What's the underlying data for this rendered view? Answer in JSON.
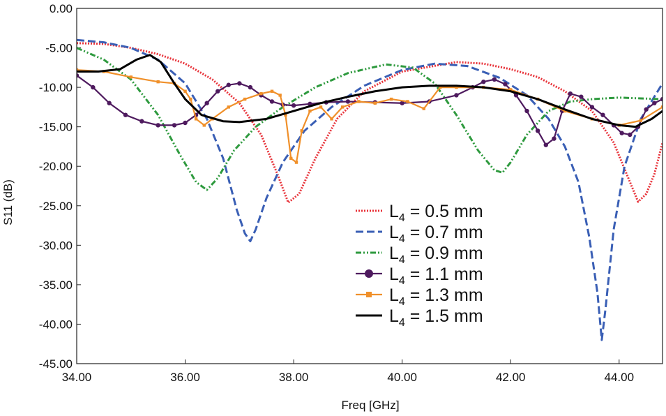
{
  "chart_data": {
    "type": "line",
    "title": "",
    "xlabel": "Freq [GHz]",
    "ylabel": "S11 (dB)",
    "xlim": [
      34.0,
      44.8
    ],
    "ylim": [
      -45.0,
      0.0
    ],
    "xticks": [
      "34.00",
      "36.00",
      "38.00",
      "40.00",
      "42.00",
      "44.00"
    ],
    "xtick_values": [
      34,
      36,
      38,
      40,
      42,
      44
    ],
    "yticks": [
      "0.00",
      "-5.00",
      "-10.00",
      "-15.00",
      "-20.00",
      "-25.00",
      "-30.00",
      "-35.00",
      "-40.00",
      "-45.00"
    ],
    "ytick_values": [
      0,
      -5,
      -10,
      -15,
      -20,
      -25,
      -30,
      -35,
      -40,
      -45
    ],
    "grid": false,
    "legend_position": "center-right",
    "series": [
      {
        "name": "0.5 mm",
        "label_prefix": "L",
        "label_sub": "4",
        "label_suffix": " = 0.5 mm",
        "color": "#e8333a",
        "dash": "2,2",
        "marker": "none",
        "x": [
          34.0,
          34.5,
          35.0,
          35.5,
          36.0,
          36.5,
          37.0,
          37.4,
          37.7,
          37.9,
          38.1,
          38.4,
          38.8,
          39.3,
          40.0,
          41.0,
          41.5,
          42.0,
          42.5,
          43.0,
          43.5,
          43.9,
          44.2,
          44.35,
          44.5,
          44.65,
          44.8
        ],
        "y": [
          -4.4,
          -4.5,
          -5.0,
          -5.8,
          -7.0,
          -9.0,
          -12.0,
          -16.0,
          -21.0,
          -24.6,
          -23.5,
          -19.0,
          -14.0,
          -10.5,
          -8.0,
          -6.8,
          -7.0,
          -7.7,
          -8.7,
          -10.5,
          -13.0,
          -17.0,
          -22.0,
          -24.5,
          -23.5,
          -21.0,
          -17.0
        ]
      },
      {
        "name": "0.7 mm",
        "label_prefix": "L",
        "label_sub": "4",
        "label_suffix": " = 0.7 mm",
        "color": "#3a5fb5",
        "dash": "11,5",
        "marker": "none",
        "x": [
          34.0,
          34.5,
          35.0,
          35.5,
          36.0,
          36.4,
          36.7,
          36.95,
          37.1,
          37.2,
          37.3,
          37.5,
          37.8,
          38.2,
          38.7,
          39.3,
          40.0,
          40.6,
          41.2,
          41.8,
          42.3,
          42.7,
          43.0,
          43.25,
          43.45,
          43.6,
          43.68,
          43.75,
          43.9,
          44.1,
          44.4,
          44.8
        ],
        "y": [
          -4.0,
          -4.3,
          -5.0,
          -6.5,
          -9.5,
          -14.0,
          -19.0,
          -25.5,
          -28.5,
          -29.5,
          -28.0,
          -24.0,
          -19.5,
          -15.5,
          -12.5,
          -9.8,
          -7.8,
          -7.0,
          -7.3,
          -8.8,
          -11.0,
          -14.0,
          -17.5,
          -22.0,
          -29.0,
          -36.0,
          -42.0,
          -38.0,
          -28.0,
          -20.0,
          -14.0,
          -9.5
        ]
      },
      {
        "name": "0.9 mm",
        "label_prefix": "L",
        "label_sub": "4",
        "label_suffix": " = 0.9 mm",
        "color": "#2e9a3e",
        "dash": "8,3,2,3,2,3",
        "marker": "none",
        "x": [
          34.0,
          34.5,
          35.0,
          35.5,
          35.9,
          36.2,
          36.4,
          36.6,
          36.9,
          37.3,
          37.8,
          38.4,
          39.0,
          39.7,
          40.2,
          40.6,
          41.0,
          41.4,
          41.7,
          41.85,
          42.0,
          42.3,
          42.7,
          43.1,
          43.5,
          44.0,
          44.4,
          44.8
        ],
        "y": [
          -5.0,
          -6.5,
          -9.0,
          -13.5,
          -18.5,
          -22.0,
          -23.0,
          -21.5,
          -18.0,
          -15.0,
          -12.5,
          -10.0,
          -8.2,
          -7.1,
          -7.5,
          -9.5,
          -13.5,
          -18.0,
          -20.5,
          -20.8,
          -19.5,
          -16.0,
          -13.0,
          -11.8,
          -11.5,
          -11.3,
          -11.4,
          -11.5
        ]
      },
      {
        "name": "1.1 mm",
        "label_prefix": "L",
        "label_sub": "4",
        "label_suffix": " = 1.1 mm",
        "color": "#4e1a5e",
        "dash": "",
        "marker": "circle",
        "x": [
          34.0,
          34.3,
          34.6,
          34.9,
          35.2,
          35.5,
          35.8,
          36.0,
          36.2,
          36.4,
          36.6,
          36.8,
          37.0,
          37.2,
          37.4,
          37.6,
          37.8,
          38.0,
          38.3,
          38.6,
          39.0,
          39.5,
          40.0,
          40.5,
          41.0,
          41.3,
          41.5,
          41.7,
          41.9,
          42.1,
          42.3,
          42.5,
          42.65,
          42.8,
          42.95,
          43.1,
          43.3,
          43.5,
          43.7,
          43.9,
          44.05,
          44.2,
          44.35,
          44.5,
          44.65,
          44.8
        ],
        "y": [
          -8.5,
          -10.0,
          -12.0,
          -13.5,
          -14.3,
          -14.8,
          -14.8,
          -14.5,
          -13.5,
          -12.0,
          -10.5,
          -9.7,
          -9.5,
          -10.0,
          -11.0,
          -11.8,
          -12.2,
          -12.3,
          -12.1,
          -11.9,
          -11.8,
          -11.9,
          -12.0,
          -11.8,
          -11.0,
          -10.0,
          -9.3,
          -9.0,
          -9.6,
          -11.0,
          -13.0,
          -15.5,
          -17.3,
          -16.5,
          -13.0,
          -10.8,
          -11.2,
          -12.5,
          -13.5,
          -14.8,
          -15.8,
          -16.0,
          -15.0,
          -12.8,
          -12.0,
          -11.5
        ]
      },
      {
        "name": "1.3 mm",
        "label_prefix": "L",
        "label_sub": "4",
        "label_suffix": " = 1.3 mm",
        "color": "#f0902a",
        "dash": "",
        "marker": "square",
        "x": [
          34.0,
          34.5,
          35.0,
          35.5,
          35.8,
          36.0,
          36.1,
          36.2,
          36.35,
          36.5,
          36.8,
          37.1,
          37.4,
          37.6,
          37.75,
          37.85,
          37.95,
          38.05,
          38.15,
          38.3,
          38.5,
          38.7,
          38.9,
          39.2,
          39.5,
          39.8,
          40.1,
          40.4,
          40.7,
          41.0,
          41.5,
          42.0,
          42.5,
          43.0,
          43.5,
          44.0,
          44.4,
          44.8
        ],
        "y": [
          -7.8,
          -8.0,
          -8.7,
          -9.3,
          -9.5,
          -10.5,
          -11.5,
          -14.0,
          -14.8,
          -14.0,
          -12.5,
          -11.5,
          -10.8,
          -10.5,
          -11.0,
          -13.5,
          -19.0,
          -19.5,
          -15.5,
          -13.0,
          -12.5,
          -14.0,
          -12.5,
          -11.8,
          -12.0,
          -11.5,
          -11.8,
          -12.7,
          -10.0,
          -10.0,
          -10.0,
          -10.3,
          -11.5,
          -13.0,
          -14.0,
          -14.8,
          -14.2,
          -12.5
        ]
      },
      {
        "name": "1.5 mm",
        "label_prefix": "L",
        "label_sub": "4",
        "label_suffix": " = 1.5 mm",
        "color": "#000000",
        "dash": "",
        "marker": "none",
        "x": [
          34.0,
          34.4,
          34.8,
          35.1,
          35.35,
          35.55,
          35.8,
          36.0,
          36.3,
          36.7,
          37.0,
          37.5,
          38.0,
          38.5,
          39.0,
          39.5,
          40.0,
          40.5,
          41.0,
          41.5,
          42.0,
          42.5,
          43.0,
          43.5,
          44.0,
          44.3,
          44.6,
          44.8
        ],
        "y": [
          -8.0,
          -8.0,
          -7.7,
          -6.5,
          -5.9,
          -6.8,
          -9.5,
          -11.5,
          -13.5,
          -14.3,
          -14.4,
          -14.0,
          -13.0,
          -12.0,
          -11.2,
          -10.5,
          -10.0,
          -9.8,
          -9.8,
          -10.0,
          -10.5,
          -11.5,
          -12.8,
          -14.0,
          -14.8,
          -15.0,
          -14.0,
          -13.0
        ]
      }
    ]
  }
}
